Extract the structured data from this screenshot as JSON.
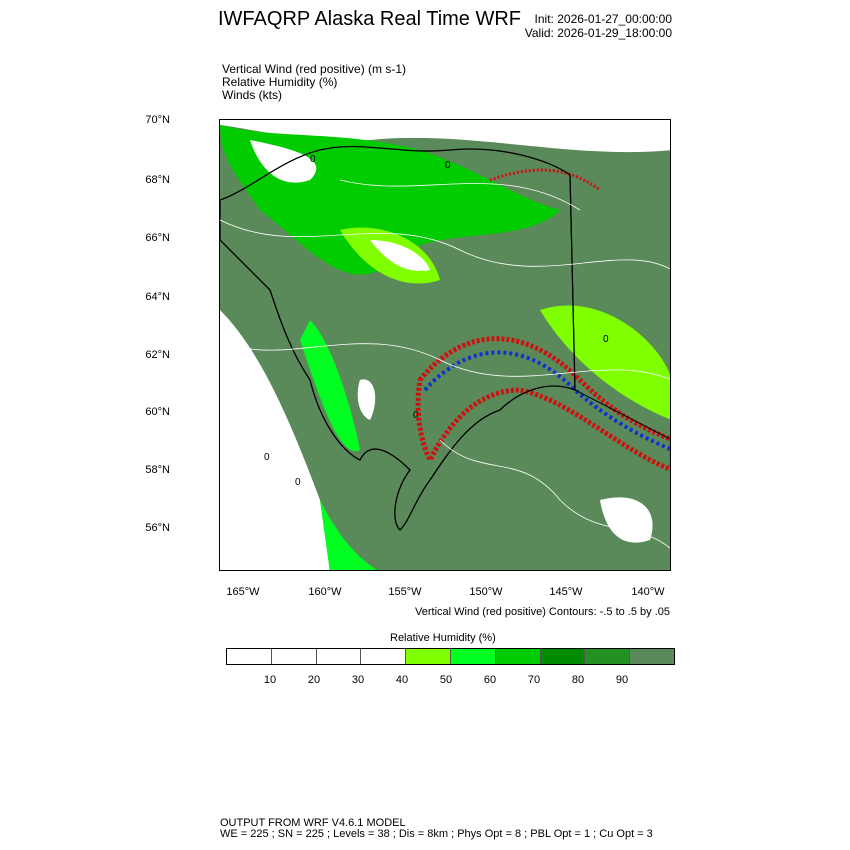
{
  "header": {
    "title": "IWFAQRP Alaska Real Time WRF",
    "init": "Init: 2026-01-27_00:00:00",
    "valid": "Valid: 2026-01-29_18:00:00"
  },
  "fields": [
    "Vertical Wind (red positive)   (m s-1)",
    "Relative Humidity   (%)",
    "Winds   (kts)"
  ],
  "map": {
    "lat_labels": [
      "70°N",
      "68°N",
      "66°N",
      "64°N",
      "62°N",
      "60°N",
      "58°N",
      "56°N"
    ],
    "lon_labels": [
      "165°W",
      "160°W",
      "155°W",
      "150°W",
      "145°W",
      "140°W"
    ],
    "contour_label": "0",
    "colors": {
      "positive": "#d01010",
      "negative": "#1030d0",
      "contour": "#ffffff"
    }
  },
  "contours_note": "Vertical Wind (red positive) Contours: -.5 to .5 by .05",
  "colorbar": {
    "title": "Relative Humidity  (%)",
    "colors": [
      "#ffffff",
      "#ffffff",
      "#ffffff",
      "#ffffff",
      "#80ff00",
      "#00ff20",
      "#00cc00",
      "#008c00",
      "#229022",
      "#5a8a5a"
    ],
    "labels": [
      "10",
      "20",
      "30",
      "40",
      "50",
      "60",
      "70",
      "80",
      "90"
    ]
  },
  "footer": {
    "line1": "OUTPUT FROM WRF V4.6.1 MODEL",
    "line2": "WE = 225 ; SN = 225 ; Levels = 38 ; Dis = 8km ; Phys Opt = 8 ; PBL Opt = 1 ; Cu Opt = 3"
  }
}
